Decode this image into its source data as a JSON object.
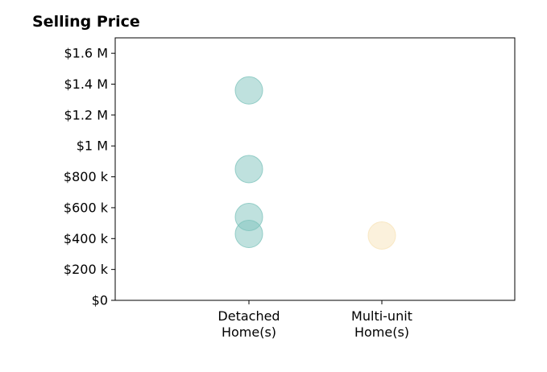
{
  "chart_data": {
    "type": "scatter",
    "title": "Selling Price",
    "categories": [
      "Detached\nHome(s)",
      "Multi-unit\nHome(s)"
    ],
    "series": [
      {
        "category": "Detached\nHome(s)",
        "color": "#80c4bd",
        "values": [
          1360000,
          850000,
          540000,
          430000
        ]
      },
      {
        "category": "Multi-unit\nHome(s)",
        "color": "#f7e3b9",
        "values": [
          420000
        ]
      }
    ],
    "yticks": [
      {
        "value": 0,
        "label": "$0"
      },
      {
        "value": 200000,
        "label": "$200 k"
      },
      {
        "value": 400000,
        "label": "$400 k"
      },
      {
        "value": 600000,
        "label": "$600 k"
      },
      {
        "value": 800000,
        "label": "$800 k"
      },
      {
        "value": 1000000,
        "label": "$1 M"
      },
      {
        "value": 1200000,
        "label": "$1.2 M"
      },
      {
        "value": 1400000,
        "label": "$1.4 M"
      },
      {
        "value": 1600000,
        "label": "$1.6 M"
      }
    ],
    "ylim": [
      0,
      1700000
    ],
    "xlabel": "",
    "ylabel": "",
    "grid": false,
    "legend": "none"
  }
}
